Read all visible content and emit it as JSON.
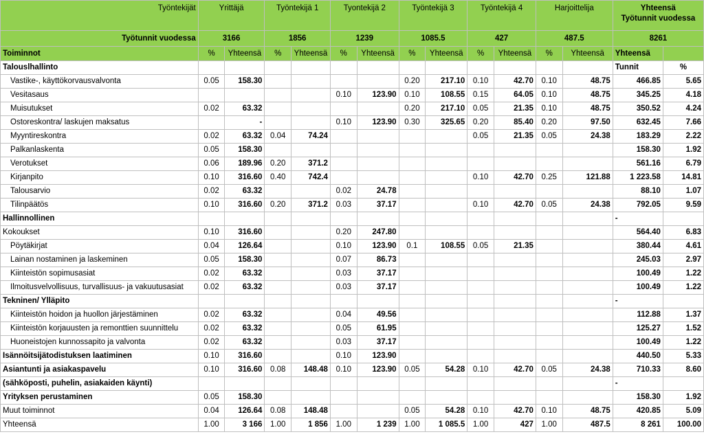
{
  "header": {
    "row_label": "Työntekijät",
    "workers": [
      "Yrittäjä",
      "Työntekijä 1",
      "Tyontekijä 2",
      "Työntekijä 3",
      "Työntekijä 4",
      "Harjoittelija"
    ],
    "total_label": "Yhteensä",
    "total_sub": "Työtunnit vuodessa",
    "hours_label": "Työtunnit vuodessa",
    "hours": [
      "3166",
      "1856",
      "1239",
      "1085.5",
      "427",
      "487.5"
    ],
    "total_hours": "8261",
    "activities_label": "Toiminnot",
    "pct_label": "%",
    "sum_label": "Yhteensä"
  },
  "rows": [
    {
      "type": "section",
      "label": "Talouslhallinto",
      "c": [
        "",
        "",
        "",
        "",
        "",
        "",
        "",
        "",
        "",
        "",
        "",
        "",
        "Tunnit",
        "%"
      ]
    },
    {
      "type": "item",
      "label": "Vastike-, käyttökorvausvalvonta",
      "c": [
        "0.05",
        "158.30",
        "",
        "",
        "",
        "",
        "0.20",
        "217.10",
        "0.10",
        "42.70",
        "0.10",
        "48.75",
        "466.85",
        "5.65"
      ]
    },
    {
      "type": "item",
      "label": "Vesitasaus",
      "c": [
        "",
        "",
        "",
        "",
        "0.10",
        "123.90",
        "0.10",
        "108.55",
        "0.15",
        "64.05",
        "0.10",
        "48.75",
        "345.25",
        "4.18"
      ]
    },
    {
      "type": "item",
      "label": "Muisutukset",
      "c": [
        "0.02",
        "63.32",
        "",
        "",
        "",
        "",
        "0.20",
        "217.10",
        "0.05",
        "21.35",
        "0.10",
        "48.75",
        "350.52",
        "4.24"
      ]
    },
    {
      "type": "item",
      "label": "Ostoreskontra/ laskujen maksatus",
      "c": [
        "",
        "-",
        "",
        "",
        "0.10",
        "123.90",
        "0.30",
        "325.65",
        "0.20",
        "85.40",
        "0.20",
        "97.50",
        "632.45",
        "7.66"
      ]
    },
    {
      "type": "item",
      "label": "Myyntireskontra",
      "c": [
        "0.02",
        "63.32",
        "0.04",
        "74.24",
        "",
        "",
        "",
        "",
        "0.05",
        "21.35",
        "0.05",
        "24.38",
        "183.29",
        "2.22"
      ]
    },
    {
      "type": "item",
      "label": "Palkanlaskenta",
      "c": [
        "0.05",
        "158.30",
        "",
        "",
        "",
        "",
        "",
        "",
        "",
        "",
        "",
        "",
        "158.30",
        "1.92"
      ]
    },
    {
      "type": "item",
      "label": "Verotukset",
      "c": [
        "0.06",
        "189.96",
        "0.20",
        "371.2",
        "",
        "",
        "",
        "",
        "",
        "",
        "",
        "",
        "561.16",
        "6.79"
      ]
    },
    {
      "type": "item",
      "label": "Kirjanpito",
      "c": [
        "0.10",
        "316.60",
        "0.40",
        "742.4",
        "",
        "",
        "",
        "",
        "0.10",
        "42.70",
        "0.25",
        "121.88",
        "1 223.58",
        "14.81"
      ]
    },
    {
      "type": "item",
      "label": "Talousarvio",
      "c": [
        "0.02",
        "63.32",
        "",
        "",
        "0.02",
        "24.78",
        "",
        "",
        "",
        "",
        "",
        "",
        "88.10",
        "1.07"
      ]
    },
    {
      "type": "item",
      "label": "Tilinpäätös",
      "c": [
        "0.10",
        "316.60",
        "0.20",
        "371.2",
        "0.03",
        "37.17",
        "",
        "",
        "0.10",
        "42.70",
        "0.05",
        "24.38",
        "792.05",
        "9.59"
      ]
    },
    {
      "type": "section",
      "label": "Hallinnollinen",
      "c": [
        "",
        "",
        "",
        "",
        "",
        "",
        "",
        "",
        "",
        "",
        "",
        "",
        "-",
        ""
      ]
    },
    {
      "type": "plain",
      "label": "Kokoukset",
      "c": [
        "0.10",
        "316.60",
        "",
        "",
        "0.20",
        "247.80",
        "",
        "",
        "",
        "",
        "",
        "",
        "564.40",
        "6.83"
      ]
    },
    {
      "type": "item",
      "label": "Pöytäkirjat",
      "c": [
        "0.04",
        "126.64",
        "",
        "",
        "0.10",
        "123.90",
        "0.1",
        "108.55",
        "0.05",
        "21.35",
        "",
        "",
        "380.44",
        "4.61"
      ]
    },
    {
      "type": "item",
      "label": "Lainan nostaminen ja laskeminen",
      "c": [
        "0.05",
        "158.30",
        "",
        "",
        "0.07",
        "86.73",
        "",
        "",
        "",
        "",
        "",
        "",
        "245.03",
        "2.97"
      ]
    },
    {
      "type": "item",
      "label": "Kiinteistön sopimusasiat",
      "c": [
        "0.02",
        "63.32",
        "",
        "",
        "0.03",
        "37.17",
        "",
        "",
        "",
        "",
        "",
        "",
        "100.49",
        "1.22"
      ]
    },
    {
      "type": "item",
      "label": "Ilmoitusvelvollisuus, turvallisuus- ja vakuutusasiat",
      "c": [
        "0.02",
        "63.32",
        "",
        "",
        "0.03",
        "37.17",
        "",
        "",
        "",
        "",
        "",
        "",
        "100.49",
        "1.22"
      ]
    },
    {
      "type": "section",
      "label": "Tekninen/ Ylläpito",
      "c": [
        "",
        "",
        "",
        "",
        "",
        "",
        "",
        "",
        "",
        "",
        "",
        "",
        "-",
        ""
      ]
    },
    {
      "type": "item",
      "label": "Kiinteistön hoidon ja huollon järjestäminen",
      "c": [
        "0.02",
        "63.32",
        "",
        "",
        "0.04",
        "49.56",
        "",
        "",
        "",
        "",
        "",
        "",
        "112.88",
        "1.37"
      ]
    },
    {
      "type": "item",
      "label": "Kiinteistön korjauusten ja remonttien suunnittelu",
      "c": [
        "0.02",
        "63.32",
        "",
        "",
        "0.05",
        "61.95",
        "",
        "",
        "",
        "",
        "",
        "",
        "125.27",
        "1.52"
      ]
    },
    {
      "type": "item",
      "label": "Huoneistojen kunnossapito ja valvonta",
      "c": [
        "0.02",
        "63.32",
        "",
        "",
        "0.03",
        "37.17",
        "",
        "",
        "",
        "",
        "",
        "",
        "100.49",
        "1.22"
      ]
    },
    {
      "type": "section",
      "label": "Isännöitsijätodistuksen laatiminen",
      "c": [
        "0.10",
        "316.60",
        "",
        "",
        "0.10",
        "123.90",
        "",
        "",
        "",
        "",
        "",
        "",
        "440.50",
        "5.33"
      ]
    },
    {
      "type": "section",
      "label": "Asiantunti ja asiakaspavelu",
      "c": [
        "0.10",
        "316.60",
        "0.08",
        "148.48",
        "0.10",
        "123.90",
        "0.05",
        "54.28",
        "0.10",
        "42.70",
        "0.05",
        "24.38",
        "710.33",
        "8.60"
      ]
    },
    {
      "type": "section",
      "label": "(sähköposti, puhelin, asiakaiden käynti)",
      "c": [
        "",
        "",
        "",
        "",
        "",
        "",
        "",
        "",
        "",
        "",
        "",
        "",
        "-",
        ""
      ]
    },
    {
      "type": "section",
      "label": "Yrityksen perustaminen",
      "c": [
        "0.05",
        "158.30",
        "",
        "",
        "",
        "",
        "",
        "",
        "",
        "",
        "",
        "",
        "158.30",
        "1.92"
      ]
    },
    {
      "type": "plain",
      "label": "Muut toiminnot",
      "c": [
        "0.04",
        "126.64",
        "0.08",
        "148.48",
        "",
        "",
        "0.05",
        "54.28",
        "0.10",
        "42.70",
        "0.10",
        "48.75",
        "420.85",
        "5.09"
      ]
    },
    {
      "type": "plain",
      "label": "Yhteensä",
      "c": [
        "1.00",
        "3 166",
        "1.00",
        "1 856",
        "1.00",
        "1 239",
        "1.00",
        "1 085.5",
        "1.00",
        "427",
        "1.00",
        "487.5",
        "8 261",
        "100.00"
      ]
    }
  ]
}
